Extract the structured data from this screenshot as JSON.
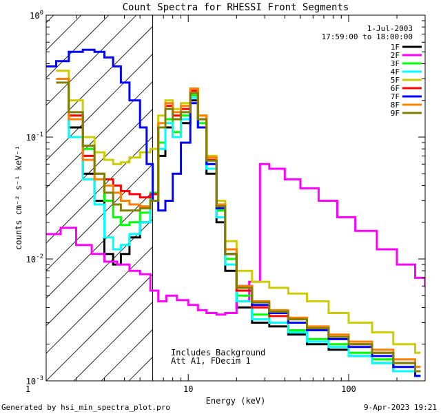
{
  "chart_data": {
    "type": "line",
    "title": "Count Spectra for RHESSI Front Segments",
    "xlabel": "Energy (keV)",
    "ylabel": "counts cm⁻² s⁻¹ keV⁻¹",
    "xscale": "log",
    "yscale": "log",
    "xlim": [
      1.3,
      300
    ],
    "ylim": [
      0.001,
      1.0
    ],
    "x_ticks": [
      {
        "value": 1,
        "label": "1"
      },
      {
        "value": 10,
        "label": "10"
      },
      {
        "value": 100,
        "label": "100"
      }
    ],
    "y_ticks": [
      {
        "value": 1,
        "label": "10",
        "sup": "0"
      },
      {
        "value": 0.1,
        "label": "10",
        "sup": "-1"
      },
      {
        "value": 0.01,
        "label": "10",
        "sup": "-2"
      },
      {
        "value": 0.001,
        "label": "10",
        "sup": "-3"
      }
    ],
    "annotations": {
      "date": "1-Jul-2003",
      "time_range": "17:59:00 to 18:00:00",
      "background_note": "Includes Background",
      "attenuator_note": "Att A1, FDecim 1"
    },
    "hatched_region_max_keV": 6,
    "legend_position": "top-right",
    "series": [
      {
        "name": "1F",
        "color": "#000000",
        "values": [
          [
            1.5,
            0.3
          ],
          [
            1.8,
            0.12
          ],
          [
            2.2,
            0.05
          ],
          [
            2.6,
            0.03
          ],
          [
            3.0,
            0.011
          ],
          [
            3.4,
            0.009
          ],
          [
            3.8,
            0.011
          ],
          [
            4.3,
            0.015
          ],
          [
            5.0,
            0.02
          ],
          [
            5.8,
            0.03
          ],
          [
            6.5,
            0.07
          ],
          [
            7.2,
            0.12
          ],
          [
            8.0,
            0.1
          ],
          [
            9.0,
            0.13
          ],
          [
            10.3,
            0.2
          ],
          [
            11.5,
            0.12
          ],
          [
            13.0,
            0.05
          ],
          [
            15.0,
            0.02
          ],
          [
            17.0,
            0.008
          ],
          [
            20.0,
            0.004
          ],
          [
            25.0,
            0.003
          ],
          [
            32.0,
            0.0028
          ],
          [
            42.0,
            0.0024
          ],
          [
            55.0,
            0.002
          ],
          [
            75.0,
            0.0018
          ],
          [
            100.0,
            0.0016
          ],
          [
            140.0,
            0.0014
          ],
          [
            190.0,
            0.0012
          ],
          [
            260.0,
            0.0011
          ]
        ]
      },
      {
        "name": "2F",
        "color": "#ff00ff",
        "values": [
          [
            1.3,
            0.016
          ],
          [
            1.6,
            0.018
          ],
          [
            2.0,
            0.013
          ],
          [
            2.5,
            0.011
          ],
          [
            3.0,
            0.0095
          ],
          [
            3.6,
            0.009
          ],
          [
            4.3,
            0.008
          ],
          [
            5.0,
            0.0075
          ],
          [
            5.8,
            0.0055
          ],
          [
            6.5,
            0.0045
          ],
          [
            7.3,
            0.005
          ],
          [
            8.5,
            0.0046
          ],
          [
            10.0,
            0.0042
          ],
          [
            11.5,
            0.0038
          ],
          [
            13.0,
            0.0036
          ],
          [
            15.0,
            0.0035
          ],
          [
            17.0,
            0.0036
          ],
          [
            20.0,
            0.0045
          ],
          [
            24.0,
            0.0065
          ],
          [
            28.0,
            0.06
          ],
          [
            32.0,
            0.055
          ],
          [
            40.0,
            0.045
          ],
          [
            50.0,
            0.038
          ],
          [
            65.0,
            0.03
          ],
          [
            85.0,
            0.022
          ],
          [
            110.0,
            0.017
          ],
          [
            150.0,
            0.012
          ],
          [
            200.0,
            0.009
          ],
          [
            260.0,
            0.007
          ],
          [
            300.0,
            0.006
          ]
        ]
      },
      {
        "name": "3F",
        "color": "#00ff00",
        "values": [
          [
            1.5,
            0.3
          ],
          [
            1.8,
            0.15
          ],
          [
            2.2,
            0.08
          ],
          [
            2.6,
            0.045
          ],
          [
            3.0,
            0.03
          ],
          [
            3.4,
            0.022
          ],
          [
            3.8,
            0.019
          ],
          [
            4.3,
            0.02
          ],
          [
            5.0,
            0.024
          ],
          [
            5.8,
            0.035
          ],
          [
            6.5,
            0.09
          ],
          [
            7.2,
            0.14
          ],
          [
            8.0,
            0.11
          ],
          [
            9.0,
            0.15
          ],
          [
            10.3,
            0.22
          ],
          [
            11.5,
            0.13
          ],
          [
            13.0,
            0.06
          ],
          [
            15.0,
            0.025
          ],
          [
            17.0,
            0.01
          ],
          [
            20.0,
            0.005
          ],
          [
            25.0,
            0.0035
          ],
          [
            32.0,
            0.003
          ],
          [
            42.0,
            0.0026
          ],
          [
            55.0,
            0.0022
          ],
          [
            75.0,
            0.002
          ],
          [
            100.0,
            0.0017
          ],
          [
            140.0,
            0.0015
          ],
          [
            190.0,
            0.0013
          ],
          [
            260.0,
            0.0012
          ]
        ]
      },
      {
        "name": "4F",
        "color": "#00ffff",
        "values": [
          [
            1.5,
            0.3
          ],
          [
            1.8,
            0.1
          ],
          [
            2.2,
            0.045
          ],
          [
            2.6,
            0.028
          ],
          [
            3.0,
            0.015
          ],
          [
            3.4,
            0.012
          ],
          [
            3.8,
            0.013
          ],
          [
            4.3,
            0.016
          ],
          [
            5.0,
            0.02
          ],
          [
            5.8,
            0.03
          ],
          [
            6.5,
            0.08
          ],
          [
            7.2,
            0.13
          ],
          [
            8.0,
            0.1
          ],
          [
            9.0,
            0.14
          ],
          [
            10.3,
            0.21
          ],
          [
            11.5,
            0.12
          ],
          [
            13.0,
            0.055
          ],
          [
            15.0,
            0.022
          ],
          [
            17.0,
            0.009
          ],
          [
            20.0,
            0.0045
          ],
          [
            25.0,
            0.0032
          ],
          [
            32.0,
            0.003
          ],
          [
            42.0,
            0.0025
          ],
          [
            55.0,
            0.0021
          ],
          [
            75.0,
            0.0019
          ],
          [
            100.0,
            0.0016
          ],
          [
            140.0,
            0.0014
          ],
          [
            190.0,
            0.0012
          ],
          [
            260.0,
            0.0011
          ]
        ]
      },
      {
        "name": "5F",
        "color": "#cccc00",
        "values": [
          [
            1.5,
            0.35
          ],
          [
            1.8,
            0.2
          ],
          [
            2.2,
            0.1
          ],
          [
            2.6,
            0.075
          ],
          [
            3.0,
            0.065
          ],
          [
            3.4,
            0.06
          ],
          [
            3.8,
            0.062
          ],
          [
            4.3,
            0.068
          ],
          [
            5.0,
            0.075
          ],
          [
            5.8,
            0.08
          ],
          [
            6.5,
            0.15
          ],
          [
            7.2,
            0.2
          ],
          [
            8.0,
            0.17
          ],
          [
            9.0,
            0.19
          ],
          [
            10.3,
            0.25
          ],
          [
            11.5,
            0.15
          ],
          [
            13.0,
            0.07
          ],
          [
            15.0,
            0.03
          ],
          [
            17.0,
            0.014
          ],
          [
            20.0,
            0.008
          ],
          [
            25.0,
            0.0065
          ],
          [
            32.0,
            0.0058
          ],
          [
            42.0,
            0.0052
          ],
          [
            55.0,
            0.0045
          ],
          [
            75.0,
            0.0036
          ],
          [
            100.0,
            0.003
          ],
          [
            140.0,
            0.0025
          ],
          [
            190.0,
            0.002
          ],
          [
            260.0,
            0.0017
          ]
        ]
      },
      {
        "name": "6F",
        "color": "#ff0000",
        "values": [
          [
            1.5,
            0.3
          ],
          [
            1.8,
            0.15
          ],
          [
            2.2,
            0.07
          ],
          [
            2.6,
            0.05
          ],
          [
            3.0,
            0.045
          ],
          [
            3.4,
            0.04
          ],
          [
            3.8,
            0.036
          ],
          [
            4.3,
            0.034
          ],
          [
            5.0,
            0.032
          ],
          [
            5.8,
            0.034
          ],
          [
            6.5,
            0.12
          ],
          [
            7.2,
            0.18
          ],
          [
            8.0,
            0.15
          ],
          [
            9.0,
            0.17
          ],
          [
            10.3,
            0.24
          ],
          [
            11.5,
            0.14
          ],
          [
            13.0,
            0.065
          ],
          [
            15.0,
            0.027
          ],
          [
            17.0,
            0.011
          ],
          [
            20.0,
            0.0055
          ],
          [
            25.0,
            0.004
          ],
          [
            32.0,
            0.0034
          ],
          [
            42.0,
            0.003
          ],
          [
            55.0,
            0.0026
          ],
          [
            75.0,
            0.0023
          ],
          [
            100.0,
            0.002
          ],
          [
            140.0,
            0.0017
          ],
          [
            190.0,
            0.0014
          ],
          [
            260.0,
            0.0012
          ]
        ]
      },
      {
        "name": "7F",
        "color": "#0000ff",
        "values": [
          [
            1.3,
            0.38
          ],
          [
            1.5,
            0.42
          ],
          [
            1.8,
            0.5
          ],
          [
            2.2,
            0.52
          ],
          [
            2.6,
            0.5
          ],
          [
            3.0,
            0.45
          ],
          [
            3.4,
            0.38
          ],
          [
            3.8,
            0.28
          ],
          [
            4.3,
            0.2
          ],
          [
            5.0,
            0.12
          ],
          [
            5.5,
            0.06
          ],
          [
            6.0,
            0.03
          ],
          [
            6.5,
            0.025
          ],
          [
            7.2,
            0.03
          ],
          [
            8.0,
            0.05
          ],
          [
            9.0,
            0.09
          ],
          [
            10.3,
            0.19
          ],
          [
            11.5,
            0.12
          ],
          [
            13.0,
            0.06
          ],
          [
            15.0,
            0.026
          ],
          [
            17.0,
            0.011
          ],
          [
            20.0,
            0.006
          ],
          [
            25.0,
            0.0042
          ],
          [
            32.0,
            0.0036
          ],
          [
            42.0,
            0.003
          ],
          [
            55.0,
            0.0026
          ],
          [
            75.0,
            0.0022
          ],
          [
            100.0,
            0.0019
          ],
          [
            140.0,
            0.0016
          ],
          [
            190.0,
            0.0013
          ],
          [
            260.0,
            0.0011
          ]
        ]
      },
      {
        "name": "8F",
        "color": "#ff8000",
        "values": [
          [
            1.5,
            0.3
          ],
          [
            1.8,
            0.14
          ],
          [
            2.2,
            0.065
          ],
          [
            2.6,
            0.045
          ],
          [
            3.0,
            0.04
          ],
          [
            3.4,
            0.035
          ],
          [
            3.8,
            0.03
          ],
          [
            4.3,
            0.028
          ],
          [
            5.0,
            0.027
          ],
          [
            5.8,
            0.03
          ],
          [
            6.5,
            0.13
          ],
          [
            7.2,
            0.19
          ],
          [
            8.0,
            0.16
          ],
          [
            9.0,
            0.18
          ],
          [
            10.3,
            0.25
          ],
          [
            11.5,
            0.15
          ],
          [
            13.0,
            0.068
          ],
          [
            15.0,
            0.028
          ],
          [
            17.0,
            0.012
          ],
          [
            20.0,
            0.006
          ],
          [
            25.0,
            0.0045
          ],
          [
            32.0,
            0.0038
          ],
          [
            42.0,
            0.0033
          ],
          [
            55.0,
            0.0028
          ],
          [
            75.0,
            0.0024
          ],
          [
            100.0,
            0.0021
          ],
          [
            140.0,
            0.0018
          ],
          [
            190.0,
            0.0015
          ],
          [
            260.0,
            0.0013
          ]
        ]
      },
      {
        "name": "9F",
        "color": "#808000",
        "values": [
          [
            1.5,
            0.28
          ],
          [
            1.8,
            0.16
          ],
          [
            2.2,
            0.085
          ],
          [
            2.6,
            0.05
          ],
          [
            3.0,
            0.035
          ],
          [
            3.4,
            0.028
          ],
          [
            3.8,
            0.025
          ],
          [
            4.3,
            0.025
          ],
          [
            5.0,
            0.026
          ],
          [
            5.8,
            0.03
          ],
          [
            6.5,
            0.12
          ],
          [
            7.2,
            0.17
          ],
          [
            8.0,
            0.14
          ],
          [
            9.0,
            0.16
          ],
          [
            10.3,
            0.23
          ],
          [
            11.5,
            0.14
          ],
          [
            13.0,
            0.064
          ],
          [
            15.0,
            0.027
          ],
          [
            17.0,
            0.011
          ],
          [
            20.0,
            0.0058
          ],
          [
            25.0,
            0.0044
          ],
          [
            32.0,
            0.0037
          ],
          [
            42.0,
            0.0032
          ],
          [
            55.0,
            0.0027
          ],
          [
            75.0,
            0.0023
          ],
          [
            100.0,
            0.002
          ],
          [
            140.0,
            0.0017
          ],
          [
            190.0,
            0.0014
          ],
          [
            260.0,
            0.0012
          ]
        ]
      }
    ]
  },
  "footer": {
    "generator": "Generated by hsi_min_spectra_plot.pro",
    "timestamp": "9-Apr-2023 19:21"
  }
}
